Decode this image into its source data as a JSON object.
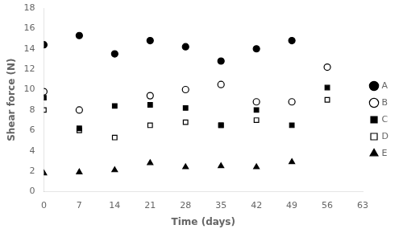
{
  "chart_data": {
    "type": "scatter",
    "x": [
      0,
      7,
      14,
      21,
      28,
      35,
      42,
      49,
      56
    ],
    "series": [
      {
        "name": "A",
        "color": "#000000",
        "marker": "circle",
        "values": [
          14.4,
          15.3,
          13.5,
          14.8,
          14.2,
          12.8,
          14.0,
          14.8,
          null
        ]
      },
      {
        "name": "B",
        "color": "#000000",
        "marker": "circle-open",
        "values": [
          9.8,
          8.0,
          null,
          9.4,
          10.0,
          10.5,
          8.8,
          8.8,
          12.2
        ]
      },
      {
        "name": "C",
        "color": "#000000",
        "marker": "square",
        "values": [
          9.2,
          6.2,
          8.4,
          8.5,
          8.2,
          6.5,
          8.0,
          6.5,
          10.2
        ]
      },
      {
        "name": "D",
        "color": "#000000",
        "marker": "square-open",
        "values": [
          8.0,
          6.0,
          5.3,
          6.5,
          6.8,
          6.5,
          7.0,
          null,
          9.0
        ]
      },
      {
        "name": "E",
        "color": "#000000",
        "marker": "triangle",
        "values": [
          1.8,
          1.9,
          2.1,
          2.8,
          2.4,
          2.5,
          2.4,
          2.9,
          null
        ]
      }
    ],
    "xlabel": "Time (days)",
    "ylabel": "Shear force (N)",
    "xlim": [
      0,
      63
    ],
    "xticks": [
      0,
      7,
      14,
      21,
      28,
      35,
      42,
      49,
      56,
      63
    ],
    "ylim": [
      0,
      18
    ],
    "yticks": [
      0,
      2,
      4,
      6,
      8,
      10,
      12,
      14,
      16,
      18
    ],
    "grid": false,
    "legend": "right"
  }
}
